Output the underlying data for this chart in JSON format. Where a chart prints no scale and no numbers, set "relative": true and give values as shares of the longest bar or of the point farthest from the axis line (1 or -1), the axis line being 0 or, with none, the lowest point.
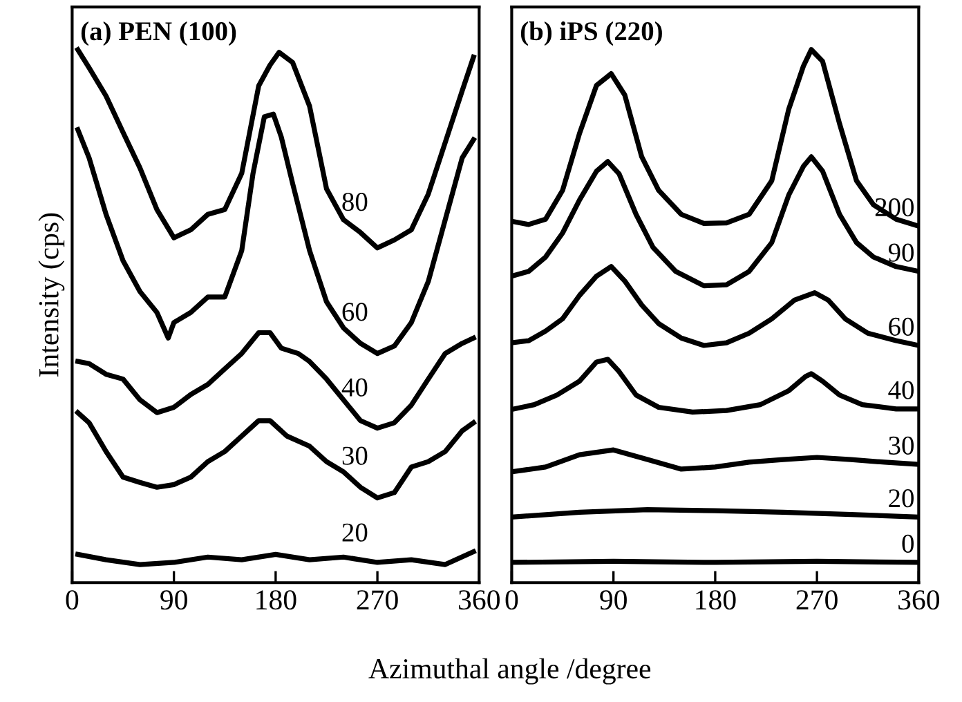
{
  "chart_data": [
    {
      "type": "line",
      "title": "(a) PEN (100)",
      "xlabel": "Azimuthal angle /degree",
      "ylabel": "Intensity (cps)",
      "relative": true,
      "xlim": [
        0,
        360
      ],
      "xticks": [
        0,
        90,
        180,
        270,
        360
      ],
      "tick_labels": "x",
      "grid": false,
      "legend": false,
      "marker": "none",
      "line_style": "solid",
      "series": [
        {
          "name": "80",
          "color": "#000000",
          "x": [
            5,
            15,
            30,
            45,
            60,
            75,
            90,
            105,
            120,
            135,
            150,
            165,
            175,
            183,
            195,
            210,
            225,
            240,
            255,
            270,
            285,
            300,
            315,
            330,
            345,
            355
          ],
          "values": [
            1.0,
            0.966,
            0.913,
            0.845,
            0.778,
            0.7,
            0.647,
            0.662,
            0.691,
            0.7,
            0.768,
            0.932,
            0.971,
            0.995,
            0.976,
            0.894,
            0.739,
            0.681,
            0.657,
            0.628,
            0.643,
            0.662,
            0.729,
            0.826,
            0.923,
            0.986
          ]
        },
        {
          "name": "60",
          "color": "#000000",
          "x": [
            5,
            15,
            30,
            45,
            60,
            75,
            85,
            90,
            105,
            120,
            135,
            150,
            160,
            170,
            178,
            185,
            195,
            210,
            225,
            240,
            255,
            270,
            285,
            300,
            315,
            330,
            345,
            355
          ],
          "values": [
            0.85,
            0.797,
            0.691,
            0.604,
            0.546,
            0.507,
            0.459,
            0.488,
            0.507,
            0.536,
            0.536,
            0.623,
            0.768,
            0.874,
            0.879,
            0.836,
            0.749,
            0.623,
            0.527,
            0.478,
            0.449,
            0.43,
            0.444,
            0.488,
            0.565,
            0.681,
            0.797,
            0.831
          ]
        },
        {
          "name": "40",
          "color": "#000000",
          "x": [
            5,
            15,
            30,
            45,
            60,
            75,
            90,
            105,
            120,
            135,
            150,
            165,
            175,
            185,
            200,
            210,
            225,
            240,
            255,
            270,
            285,
            300,
            315,
            330,
            345,
            355
          ],
          "values": [
            0.415,
            0.411,
            0.391,
            0.382,
            0.343,
            0.319,
            0.329,
            0.353,
            0.372,
            0.401,
            0.43,
            0.469,
            0.469,
            0.44,
            0.43,
            0.415,
            0.382,
            0.343,
            0.304,
            0.29,
            0.3,
            0.333,
            0.382,
            0.43,
            0.449,
            0.459
          ]
        },
        {
          "name": "30",
          "color": "#000000",
          "x": [
            5,
            15,
            30,
            45,
            60,
            75,
            90,
            105,
            120,
            135,
            150,
            165,
            175,
            190,
            210,
            225,
            240,
            255,
            270,
            285,
            300,
            315,
            330,
            345,
            355
          ],
          "values": [
            0.319,
            0.3,
            0.246,
            0.198,
            0.188,
            0.179,
            0.184,
            0.198,
            0.227,
            0.246,
            0.275,
            0.304,
            0.304,
            0.275,
            0.256,
            0.227,
            0.208,
            0.179,
            0.159,
            0.169,
            0.217,
            0.227,
            0.246,
            0.285,
            0.3
          ]
        },
        {
          "name": "20",
          "color": "#000000",
          "x": [
            5,
            30,
            60,
            90,
            120,
            150,
            180,
            210,
            240,
            270,
            300,
            330,
            355
          ],
          "values": [
            0.053,
            0.043,
            0.034,
            0.038,
            0.048,
            0.043,
            0.053,
            0.043,
            0.048,
            0.038,
            0.043,
            0.034,
            0.058
          ]
        }
      ]
    },
    {
      "type": "line",
      "title": "(b) iPS (220)",
      "relative": true,
      "xlim": [
        0,
        360
      ],
      "xticks": [
        0,
        90,
        180,
        270,
        360
      ],
      "tick_labels": "x",
      "grid": false,
      "legend": false,
      "marker": "none",
      "line_style": "solid",
      "series": [
        {
          "name": "200",
          "color": "#000000",
          "x": [
            0,
            15,
            30,
            45,
            60,
            75,
            88,
            100,
            115,
            130,
            150,
            170,
            190,
            210,
            230,
            245,
            258,
            265,
            275,
            290,
            305,
            320,
            340,
            360
          ],
          "values": [
            0.678,
            0.672,
            0.682,
            0.736,
            0.843,
            0.933,
            0.955,
            0.915,
            0.799,
            0.736,
            0.691,
            0.674,
            0.675,
            0.691,
            0.754,
            0.888,
            0.969,
            1.0,
            0.978,
            0.861,
            0.754,
            0.709,
            0.682,
            0.669
          ]
        },
        {
          "name": "90",
          "color": "#000000",
          "x": [
            0,
            15,
            30,
            45,
            60,
            75,
            85,
            95,
            110,
            125,
            145,
            170,
            190,
            210,
            230,
            245,
            258,
            265,
            275,
            290,
            305,
            320,
            340,
            360
          ],
          "values": [
            0.575,
            0.584,
            0.611,
            0.656,
            0.718,
            0.772,
            0.79,
            0.767,
            0.691,
            0.629,
            0.584,
            0.557,
            0.559,
            0.584,
            0.638,
            0.727,
            0.781,
            0.799,
            0.772,
            0.691,
            0.638,
            0.611,
            0.593,
            0.584
          ]
        },
        {
          "name": "60",
          "color": "#000000",
          "x": [
            0,
            15,
            30,
            45,
            60,
            75,
            88,
            100,
            115,
            130,
            150,
            170,
            190,
            210,
            230,
            250,
            268,
            280,
            295,
            315,
            340,
            360
          ],
          "values": [
            0.45,
            0.454,
            0.472,
            0.495,
            0.539,
            0.575,
            0.593,
            0.566,
            0.521,
            0.486,
            0.459,
            0.445,
            0.45,
            0.468,
            0.495,
            0.53,
            0.544,
            0.53,
            0.495,
            0.468,
            0.454,
            0.445
          ]
        },
        {
          "name": "40",
          "color": "#000000",
          "x": [
            0,
            20,
            40,
            60,
            75,
            85,
            95,
            110,
            130,
            160,
            190,
            220,
            245,
            260,
            265,
            275,
            290,
            310,
            340,
            360
          ],
          "values": [
            0.325,
            0.334,
            0.352,
            0.378,
            0.414,
            0.419,
            0.396,
            0.352,
            0.329,
            0.32,
            0.323,
            0.334,
            0.36,
            0.387,
            0.392,
            0.378,
            0.352,
            0.334,
            0.326,
            0.326
          ]
        },
        {
          "name": "30",
          "color": "#000000",
          "x": [
            0,
            30,
            60,
            90,
            120,
            150,
            180,
            210,
            240,
            270,
            300,
            330,
            360
          ],
          "values": [
            0.208,
            0.217,
            0.24,
            0.249,
            0.231,
            0.213,
            0.217,
            0.226,
            0.231,
            0.235,
            0.231,
            0.226,
            0.222
          ]
        },
        {
          "name": "20",
          "color": "#000000",
          "x": [
            0,
            60,
            120,
            180,
            240,
            300,
            360
          ],
          "values": [
            0.123,
            0.132,
            0.137,
            0.135,
            0.132,
            0.128,
            0.123
          ]
        },
        {
          "name": "0",
          "color": "#000000",
          "x": [
            0,
            90,
            180,
            270,
            360
          ],
          "values": [
            0.038,
            0.04,
            0.038,
            0.04,
            0.038
          ]
        }
      ]
    }
  ]
}
